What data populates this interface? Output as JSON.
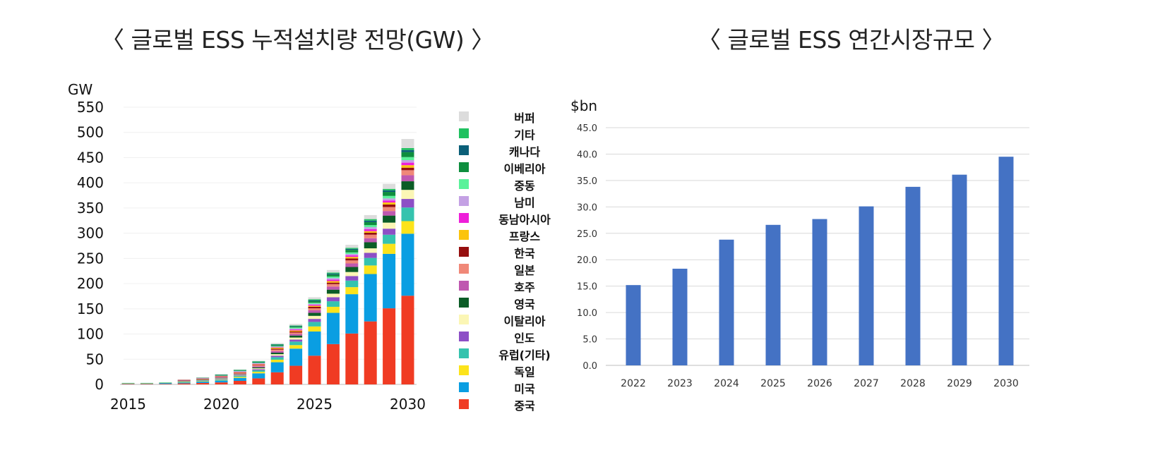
{
  "titles": {
    "left": "〈 글로벌 ESS 누적설치량 전망(GW) 〉",
    "right": "〈 글로벌 ESS 연간시장규모 〉"
  },
  "chart_data": [
    {
      "type": "bar",
      "stacked": true,
      "ylabel": "GW",
      "ylim": [
        0,
        550
      ],
      "yticks": [
        0,
        50,
        100,
        150,
        200,
        250,
        300,
        350,
        400,
        450,
        500,
        550
      ],
      "categories": [
        2015,
        2016,
        2017,
        2018,
        2019,
        2020,
        2021,
        2022,
        2023,
        2024,
        2025,
        2026,
        2027,
        2028,
        2029,
        2030
      ],
      "xticks": [
        "2015",
        "2020",
        "2025",
        "2030"
      ],
      "legend_position": "right",
      "series": [
        {
          "name": "중국",
          "color": "#f03b23",
          "values": [
            1,
            1,
            1,
            2,
            3,
            4,
            7,
            12,
            24,
            37,
            57,
            80,
            101,
            125,
            151,
            176
          ]
        },
        {
          "name": "미국",
          "color": "#0a9ee2",
          "values": [
            1,
            1,
            2,
            2,
            3,
            4,
            6,
            10,
            20,
            34,
            48,
            62,
            78,
            94,
            108,
            123
          ]
        },
        {
          "name": "독일",
          "color": "#fce31b",
          "values": [
            0.5,
            0.5,
            0.5,
            1,
            1,
            1,
            2,
            3,
            5,
            7,
            10,
            12,
            14,
            17,
            20,
            25
          ]
        },
        {
          "name": "유럽(기타)",
          "color": "#35c3ae",
          "values": [
            0.5,
            0.5,
            0.5,
            1,
            1,
            1,
            2,
            3,
            5,
            7,
            9,
            11,
            13,
            15,
            18,
            27
          ]
        },
        {
          "name": "인도",
          "color": "#8d4fc6",
          "values": [
            0,
            0,
            0,
            0.5,
            0.5,
            1,
            1,
            2,
            3,
            4,
            6,
            8,
            9,
            10,
            12,
            17
          ]
        },
        {
          "name": "이탈리아",
          "color": "#fbf6b5",
          "values": [
            0,
            0,
            0,
            0.5,
            0.5,
            1,
            1,
            2,
            3,
            4,
            6,
            7,
            8,
            9,
            12,
            18
          ]
        },
        {
          "name": "영국",
          "color": "#0b5c26",
          "values": [
            0,
            0,
            0,
            0.5,
            0.5,
            1,
            1,
            2,
            3,
            4,
            6,
            8,
            10,
            12,
            14,
            17
          ]
        },
        {
          "name": "호주",
          "color": "#bf58b0",
          "values": [
            0,
            0,
            0,
            0.5,
            0.5,
            1,
            1,
            2,
            3,
            3,
            5,
            6,
            7,
            8,
            9,
            12
          ]
        },
        {
          "name": "일본",
          "color": "#f08878",
          "values": [
            0,
            0,
            0,
            0.5,
            0.5,
            1,
            1,
            2,
            3,
            3,
            4,
            5,
            6,
            7,
            8,
            10
          ]
        },
        {
          "name": "한국",
          "color": "#960f0f",
          "values": [
            0,
            0,
            0,
            0.5,
            0.5,
            1,
            1,
            1,
            2,
            2,
            3,
            3,
            4,
            4,
            5,
            5
          ]
        },
        {
          "name": "프랑스",
          "color": "#fbc40d",
          "values": [
            0,
            0,
            0,
            0,
            0.5,
            0.5,
            1,
            1,
            2,
            2,
            2,
            3,
            3,
            3,
            4,
            5
          ]
        },
        {
          "name": "동남아시아",
          "color": "#ee1fd9",
          "values": [
            0,
            0,
            0,
            0,
            0.5,
            0.5,
            1,
            1,
            1,
            2,
            2,
            3,
            3,
            4,
            4,
            5
          ]
        },
        {
          "name": "남미",
          "color": "#c4a1e4",
          "values": [
            0,
            0,
            0,
            0,
            0.5,
            0.5,
            1,
            1,
            1,
            2,
            2,
            3,
            3,
            4,
            4,
            5
          ]
        },
        {
          "name": "중동",
          "color": "#5af29a",
          "values": [
            0,
            0,
            0,
            0,
            0.5,
            0.5,
            1,
            1,
            1,
            2,
            2,
            3,
            3,
            4,
            5,
            6
          ]
        },
        {
          "name": "이베리아",
          "color": "#0e8e3e",
          "values": [
            0,
            0,
            0,
            0,
            0.5,
            0.5,
            1,
            1,
            2,
            2,
            3,
            4,
            5,
            6,
            8,
            10
          ]
        },
        {
          "name": "캐나다",
          "color": "#0b5f78",
          "values": [
            0,
            0,
            0,
            0,
            0,
            0.5,
            0.5,
            1,
            1,
            1,
            2,
            2,
            2,
            3,
            3,
            4
          ]
        },
        {
          "name": "기타",
          "color": "#20c160",
          "values": [
            0,
            0,
            0,
            0,
            0,
            0.5,
            0.5,
            1,
            1,
            1,
            2,
            2,
            2,
            3,
            3,
            4
          ]
        },
        {
          "name": "버퍼",
          "color": "#dcdcdc",
          "values": [
            0,
            0,
            0,
            0,
            0.5,
            1,
            1,
            1,
            2,
            3,
            4,
            5,
            6,
            8,
            10,
            18
          ]
        }
      ]
    },
    {
      "type": "bar",
      "ylabel": "$bn",
      "ylim": [
        0,
        45
      ],
      "yticks": [
        "0.0",
        "5.0",
        "10.0",
        "15.0",
        "20.0",
        "25.0",
        "30.0",
        "35.0",
        "40.0",
        "45.0"
      ],
      "categories": [
        "2022",
        "2023",
        "2024",
        "2025",
        "2026",
        "2027",
        "2028",
        "2029",
        "2030"
      ],
      "color": "#4472c4",
      "values": [
        15.2,
        18.3,
        23.8,
        26.6,
        27.7,
        30.1,
        33.8,
        36.1,
        39.5
      ]
    }
  ]
}
